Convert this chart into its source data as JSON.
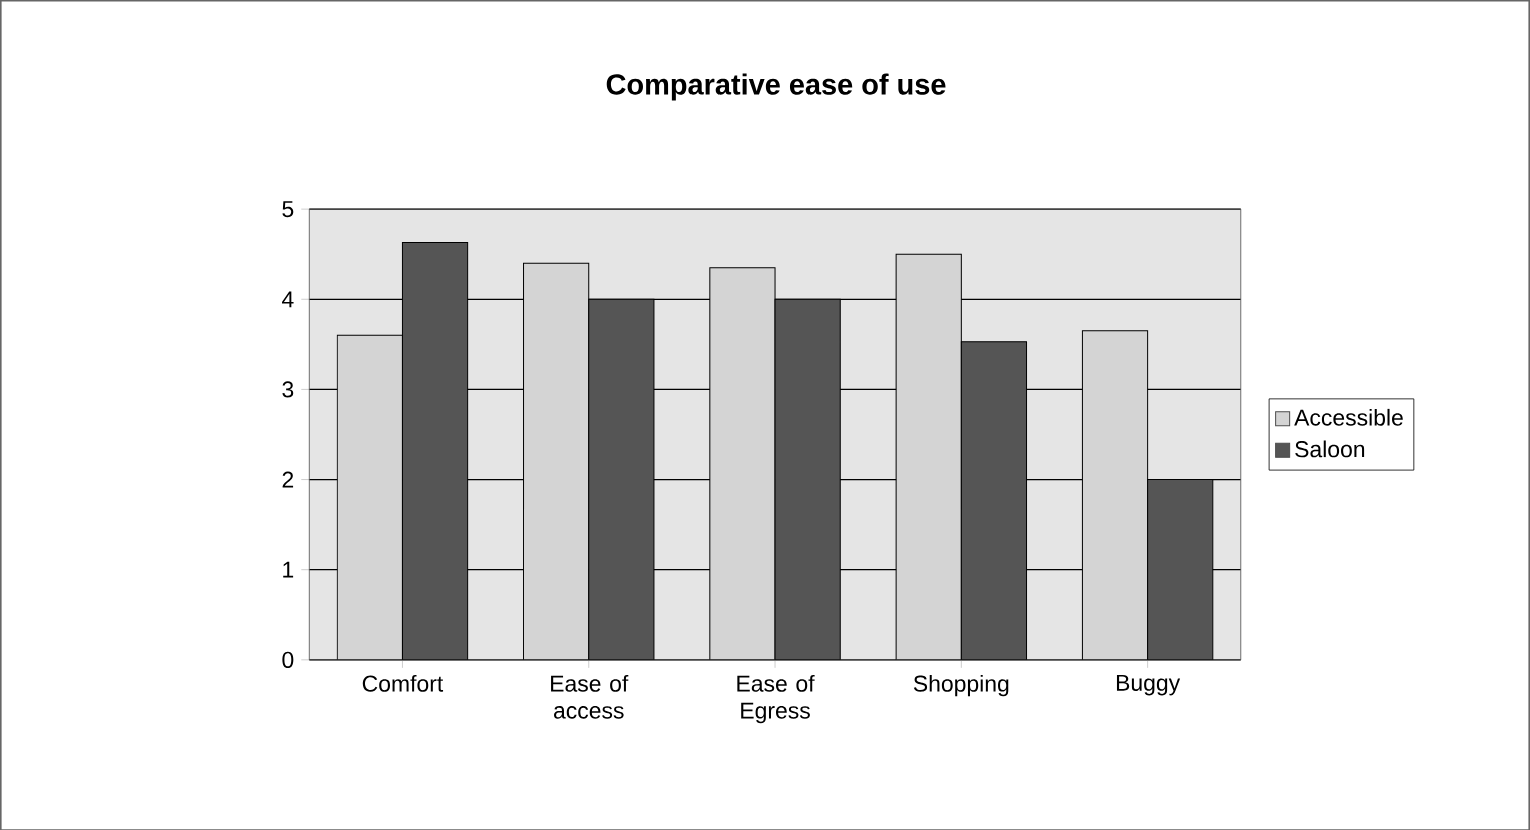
{
  "chart_data": {
    "type": "bar",
    "title": "Comparative ease of use",
    "categories": [
      "Comfort",
      "Ease of access",
      "Ease of Egress",
      "Shopping",
      "Buggy"
    ],
    "series": [
      {
        "name": "Accessible",
        "color": "#d4d4d4",
        "values": [
          3.6,
          4.4,
          4.35,
          4.5,
          3.65
        ]
      },
      {
        "name": "Saloon",
        "color": "#555555",
        "values": [
          4.63,
          4.0,
          4.0,
          3.53,
          2.0
        ]
      }
    ],
    "ylim": [
      0,
      5
    ],
    "yticks": [
      0,
      1,
      2,
      3,
      4,
      5
    ],
    "grid": "y",
    "legend": "right"
  }
}
